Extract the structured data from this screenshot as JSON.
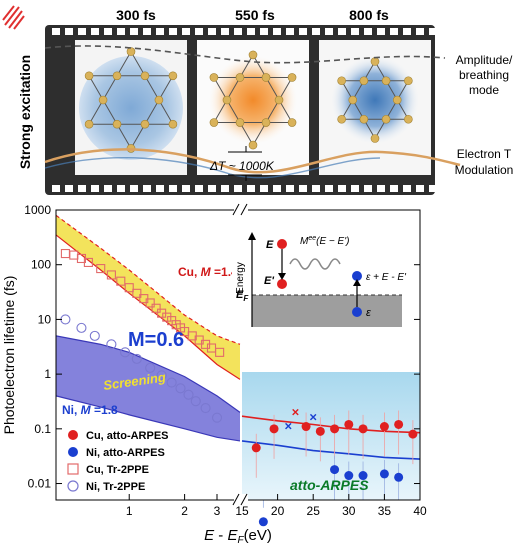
{
  "top_panel": {
    "frame_times": [
      "300 fs",
      "550 fs",
      "800 fs"
    ],
    "side_label": "Strong excitation",
    "amplitude_label": [
      "Amplitude/",
      "breathing",
      "mode"
    ],
    "electron_label": [
      "Electron T",
      "Modulation"
    ],
    "delta_t_label": "ΔT ~ 1000K",
    "colors": {
      "film": "#2b2b2b",
      "blue_blob": "#5b8fc7",
      "orange_blob": "#f08a2a",
      "atom": "#d9b25a",
      "sine": "#e2a35b"
    }
  },
  "chart_data": {
    "type": "scatter",
    "xlabel": "E - E_F (eV)",
    "ylabel": "Photoelectron lifetime (fs)",
    "y_scale": "log",
    "ylim": [
      0.005,
      1000
    ],
    "y_ticks": [
      "1000",
      "100",
      "10",
      "1",
      "0.1",
      "0.01"
    ],
    "left_panel": {
      "x_scale": "log",
      "xlim": [
        0.4,
        4
      ],
      "x_ticks": [
        "1",
        "2",
        "3"
      ],
      "series": [
        {
          "name": "Cu, Tr-2PPE",
          "marker": "open-square",
          "color": "#e26a6a",
          "points": [
            [
              0.45,
              160
            ],
            [
              0.5,
              150
            ],
            [
              0.55,
              130
            ],
            [
              0.6,
              110
            ],
            [
              0.7,
              85
            ],
            [
              0.8,
              65
            ],
            [
              0.9,
              50
            ],
            [
              1.0,
              38
            ],
            [
              1.1,
              30
            ],
            [
              1.2,
              24
            ],
            [
              1.3,
              20
            ],
            [
              1.4,
              16
            ],
            [
              1.5,
              13
            ],
            [
              1.6,
              11
            ],
            [
              1.7,
              9.5
            ],
            [
              1.8,
              8
            ],
            [
              1.9,
              7
            ],
            [
              2.0,
              6
            ],
            [
              2.2,
              5
            ],
            [
              2.4,
              4.2
            ],
            [
              2.6,
              3.5
            ],
            [
              2.8,
              3
            ],
            [
              3.1,
              2.5
            ]
          ]
        },
        {
          "name": "Ni, Tr-2PPE",
          "marker": "open-circle",
          "color": "#7a78d0",
          "points": [
            [
              0.45,
              10
            ],
            [
              0.55,
              7
            ],
            [
              0.65,
              5
            ],
            [
              0.8,
              3.5
            ],
            [
              0.95,
              2.5
            ],
            [
              1.1,
              1.9
            ],
            [
              1.3,
              1.3
            ],
            [
              1.5,
              0.95
            ],
            [
              1.7,
              0.7
            ],
            [
              1.9,
              0.55
            ],
            [
              2.1,
              0.42
            ],
            [
              2.3,
              0.32
            ],
            [
              2.6,
              0.24
            ],
            [
              3.0,
              0.16
            ]
          ]
        }
      ],
      "bands": [
        {
          "label": "Cu, M =1.4",
          "upper": [
            [
              0.4,
              800
            ],
            [
              0.7,
              200
            ],
            [
              1,
              80
            ],
            [
              2,
              12
            ],
            [
              3,
              5
            ],
            [
              4,
              3.5
            ]
          ],
          "lower": [
            [
              0.4,
              350
            ],
            [
              0.7,
              80
            ],
            [
              1,
              30
            ],
            [
              2,
              5
            ],
            [
              3,
              1.5
            ],
            [
              4,
              0.8
            ]
          ],
          "color": "#f2e04a"
        },
        {
          "label": "Screening",
          "upper": [
            [
              0.4,
              5
            ],
            [
              0.7,
              3.5
            ],
            [
              1,
              2.5
            ],
            [
              2,
              0.9
            ],
            [
              3,
              0.4
            ],
            [
              4,
              0.2
            ]
          ],
          "lower": [
            [
              0.4,
              0.4
            ],
            [
              0.7,
              0.25
            ],
            [
              1,
              0.18
            ],
            [
              2,
              0.1
            ],
            [
              3,
              0.07
            ],
            [
              4,
              0.06
            ]
          ],
          "color": "#7774d8"
        }
      ],
      "annotations": [
        "Cu, M =1.4",
        "M=0.6",
        "Screening",
        "Ni, M =1.8"
      ]
    },
    "right_panel": {
      "xlim": [
        15,
        40
      ],
      "x_ticks": [
        "15",
        "20",
        "25",
        "30",
        "35",
        "40"
      ],
      "label": "atto-ARPES",
      "series": [
        {
          "name": "Cu, atto-ARPES",
          "marker": "filled-circle",
          "color": "#e02020",
          "points": [
            [
              17,
              0.045
            ],
            [
              19.5,
              0.1
            ],
            [
              24,
              0.11
            ],
            [
              26,
              0.09
            ],
            [
              28,
              0.1
            ],
            [
              30,
              0.12
            ],
            [
              32,
              0.1
            ],
            [
              35,
              0.11
            ],
            [
              37,
              0.12
            ],
            [
              39,
              0.08
            ]
          ]
        },
        {
          "name": "Ni, atto-ARPES",
          "marker": "filled-circle",
          "color": "#1a3fd0",
          "points": [
            [
              18,
              0.002
            ],
            [
              28,
              0.018
            ],
            [
              30,
              0.014
            ],
            [
              32,
              0.014
            ],
            [
              35,
              0.015
            ],
            [
              37,
              0.013
            ]
          ]
        },
        {
          "name": "",
          "marker": "cross",
          "color": "#e02020",
          "points": [
            [
              22.5,
              0.2
            ]
          ]
        },
        {
          "name": "",
          "marker": "cross",
          "color": "#1a3fd0",
          "points": [
            [
              21.5,
              0.11
            ],
            [
              25,
              0.16
            ]
          ]
        }
      ],
      "curves": [
        {
          "color": "#e02020",
          "points": [
            [
              15,
              0.17
            ],
            [
              20,
              0.14
            ],
            [
              25,
              0.12
            ],
            [
              30,
              0.1
            ],
            [
              35,
              0.09
            ],
            [
              40,
              0.085
            ]
          ]
        },
        {
          "color": "#1a3fd0",
          "points": [
            [
              15,
              0.06
            ],
            [
              20,
              0.05
            ],
            [
              25,
              0.04
            ],
            [
              30,
              0.035
            ],
            [
              35,
              0.03
            ],
            [
              40,
              0.028
            ]
          ]
        }
      ]
    },
    "legend": [
      "Cu, atto-ARPES",
      "Ni, atto-ARPES",
      "Cu, Tr-2PPE",
      "Ni, Tr-2PPE"
    ]
  },
  "inset": {
    "energy_label": "Energy",
    "E": "E",
    "E_prime": "E'",
    "EF": "E_F",
    "matrix": "M^{ee}(E - E')",
    "eps_plus": "ε + E - E'",
    "eps": "ε"
  }
}
